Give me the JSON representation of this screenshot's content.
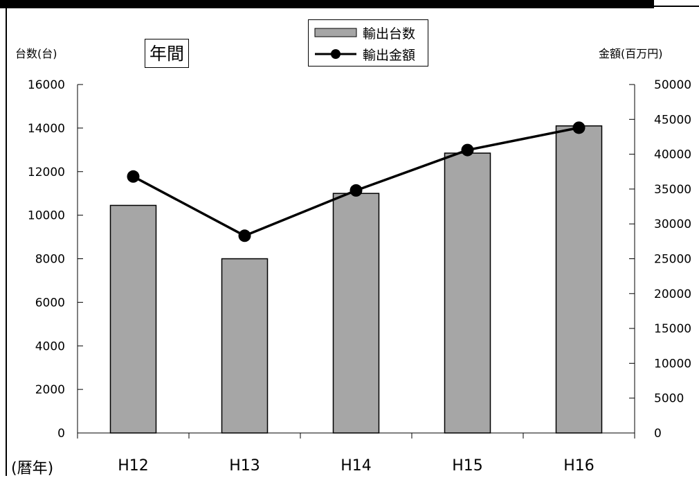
{
  "chart_data": {
    "type": "bar",
    "categories": [
      "H12",
      "H13",
      "H14",
      "H15",
      "H16"
    ],
    "series": [
      {
        "name": "輸出台数",
        "type": "bar",
        "axis": "left",
        "color": "#a6a6a6",
        "values": [
          10450,
          8000,
          11000,
          12850,
          14100
        ]
      },
      {
        "name": "輸出金額",
        "type": "line",
        "axis": "right",
        "color": "#000000",
        "values": [
          36800,
          28300,
          34800,
          40600,
          43800
        ]
      }
    ],
    "ylim_left": [
      0,
      16000
    ],
    "ylim_right": [
      0,
      50000
    ],
    "yticks_left": [
      "0",
      "2000",
      "4000",
      "6000",
      "8000",
      "10000",
      "12000",
      "14000",
      "16000"
    ],
    "yticks_right": [
      "0",
      "5000",
      "10000",
      "15000",
      "20000",
      "25000",
      "30000",
      "35000",
      "40000",
      "45000",
      "50000"
    ],
    "ylabel_left": "台数(台)",
    "ylabel_right": "金額(百万円)",
    "xlabel": "(暦年)",
    "box_label": "年間",
    "legend_position": "top-center",
    "grid": false
  }
}
